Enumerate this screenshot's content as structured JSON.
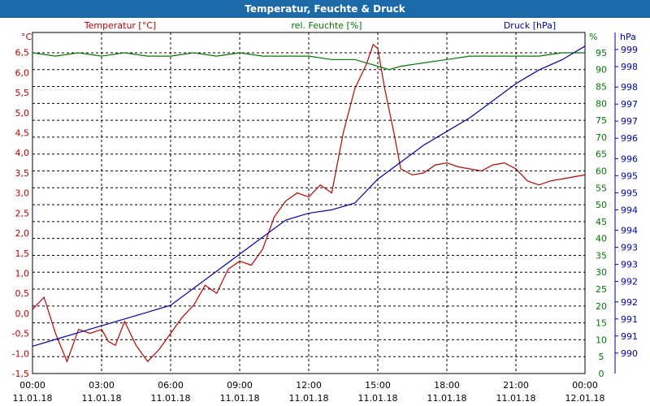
{
  "window": {
    "title": "Temperatur, Feuchte & Druck"
  },
  "chart_data": {
    "type": "line",
    "title": "Temperatur, Feuchte & Druck",
    "grid": true,
    "colors": {
      "temperature": "#c00000",
      "humidity": "#007800",
      "pressure": "#0000b4",
      "grid": "#000000"
    },
    "x_labels": [
      {
        "h": 0,
        "time": "00:00",
        "date": "11.01.18"
      },
      {
        "h": 3,
        "time": "03:00",
        "date": "11.01.18"
      },
      {
        "h": 6,
        "time": "06:00",
        "date": "11.01.18"
      },
      {
        "h": 9,
        "time": "09:00",
        "date": "11.01.18"
      },
      {
        "h": 12,
        "time": "12:00",
        "date": "11.01.18"
      },
      {
        "h": 15,
        "time": "15:00",
        "date": "11.01.18"
      },
      {
        "h": 18,
        "time": "18:00",
        "date": "11.01.18"
      },
      {
        "h": 21,
        "time": "21:00",
        "date": "11.01.18"
      },
      {
        "h": 24,
        "time": "00:00",
        "date": "12.01.18"
      }
    ],
    "axes": {
      "temperature": {
        "label": "Temperatur [°C]",
        "unit": "°C",
        "ylim": [
          -1.5,
          7.0
        ],
        "ticks": [
          "6,5",
          "6,0",
          "5,5",
          "5,0",
          "4,5",
          "4,0",
          "3,5",
          "3,0",
          "2,5",
          "2,0",
          "1,5",
          "1,0",
          "0,5",
          "0,0",
          "-0,5",
          "-1,0",
          "-1,5"
        ],
        "tick_values": [
          6.5,
          6.0,
          5.5,
          5.0,
          4.5,
          4.0,
          3.5,
          3.0,
          2.5,
          2.0,
          1.5,
          1.0,
          0.5,
          0.0,
          -0.5,
          -1.0,
          -1.5
        ]
      },
      "humidity": {
        "label": "rel. Feuchte [%]",
        "unit": "%",
        "ylim": [
          0,
          101
        ],
        "ticks": [
          "95",
          "90",
          "85",
          "80",
          "75",
          "70",
          "65",
          "60",
          "55",
          "50",
          "45",
          "40",
          "35",
          "30",
          "25",
          "20",
          "15",
          "10",
          "5",
          "0"
        ],
        "tick_values": [
          95,
          90,
          85,
          80,
          75,
          70,
          65,
          60,
          55,
          50,
          45,
          40,
          35,
          30,
          25,
          20,
          15,
          10,
          5,
          0
        ]
      },
      "pressure": {
        "label": "Druck [hPa]",
        "unit": "hPa",
        "ylim": [
          989.5,
          999.5
        ],
        "ticks": [
          "999",
          "998",
          "998",
          "997",
          "997",
          "996",
          "996",
          "995",
          "995",
          "994",
          "994",
          "993",
          "993",
          "992",
          "992",
          "991",
          "991",
          "990"
        ],
        "tick_values": [
          999.0,
          998.5,
          997.9,
          997.4,
          996.9,
          996.4,
          995.8,
          995.3,
          994.8,
          994.3,
          993.7,
          993.2,
          992.7,
          992.2,
          991.6,
          991.1,
          990.6,
          990.1
        ]
      }
    },
    "series": [
      {
        "name": "Temperatur",
        "axis": "temperature",
        "x": [
          0,
          0.5,
          1,
          1.5,
          2,
          2.5,
          3,
          3.3,
          3.6,
          4,
          4.5,
          5,
          5.5,
          6,
          6.5,
          7,
          7.5,
          8,
          8.5,
          9,
          9.5,
          10,
          10.5,
          11,
          11.5,
          12,
          12.5,
          13,
          13.5,
          14,
          14.5,
          14.8,
          15,
          15.3,
          15.7,
          16,
          16.5,
          17,
          17.5,
          18,
          18.5,
          19,
          19.5,
          20,
          20.5,
          21,
          21.5,
          22,
          22.5,
          23,
          23.5,
          24
        ],
        "values": [
          0.1,
          0.4,
          -0.5,
          -1.2,
          -0.4,
          -0.5,
          -0.4,
          -0.7,
          -0.8,
          -0.2,
          -0.8,
          -1.2,
          -0.9,
          -0.5,
          -0.1,
          0.2,
          0.7,
          0.5,
          1.1,
          1.3,
          1.2,
          1.6,
          2.4,
          2.8,
          3.0,
          2.9,
          3.2,
          3.0,
          4.5,
          5.6,
          6.2,
          6.7,
          6.6,
          5.6,
          4.5,
          3.6,
          3.45,
          3.5,
          3.7,
          3.75,
          3.65,
          3.6,
          3.55,
          3.7,
          3.75,
          3.6,
          3.3,
          3.2,
          3.3,
          3.35,
          3.4,
          3.45
        ]
      },
      {
        "name": "rel. Feuchte",
        "axis": "humidity",
        "x": [
          0,
          1,
          2,
          3,
          4,
          5,
          6,
          7,
          8,
          9,
          10,
          11,
          12,
          13,
          14,
          14.5,
          15,
          15.5,
          16,
          17,
          18,
          19,
          20,
          21,
          22,
          23,
          24
        ],
        "values": [
          95,
          94,
          95,
          94,
          95,
          94,
          94,
          95,
          94,
          95,
          94,
          94,
          94,
          93,
          93,
          92,
          91,
          90,
          91,
          92,
          93,
          94,
          94,
          94,
          94,
          95,
          95
        ]
      },
      {
        "name": "Druck",
        "axis": "pressure",
        "x": [
          0,
          1,
          2,
          3,
          4,
          5,
          6,
          7,
          8,
          9,
          10,
          11,
          12,
          13,
          14,
          15,
          16,
          17,
          18,
          19,
          20,
          21,
          22,
          23,
          24
        ],
        "values": [
          990.3,
          990.5,
          990.7,
          990.9,
          991.1,
          991.3,
          991.5,
          992.0,
          992.5,
          993.0,
          993.5,
          994.0,
          994.2,
          994.3,
          994.5,
          995.2,
          995.7,
          996.2,
          996.6,
          997.0,
          997.5,
          998.0,
          998.4,
          998.7,
          999.1
        ]
      }
    ]
  }
}
